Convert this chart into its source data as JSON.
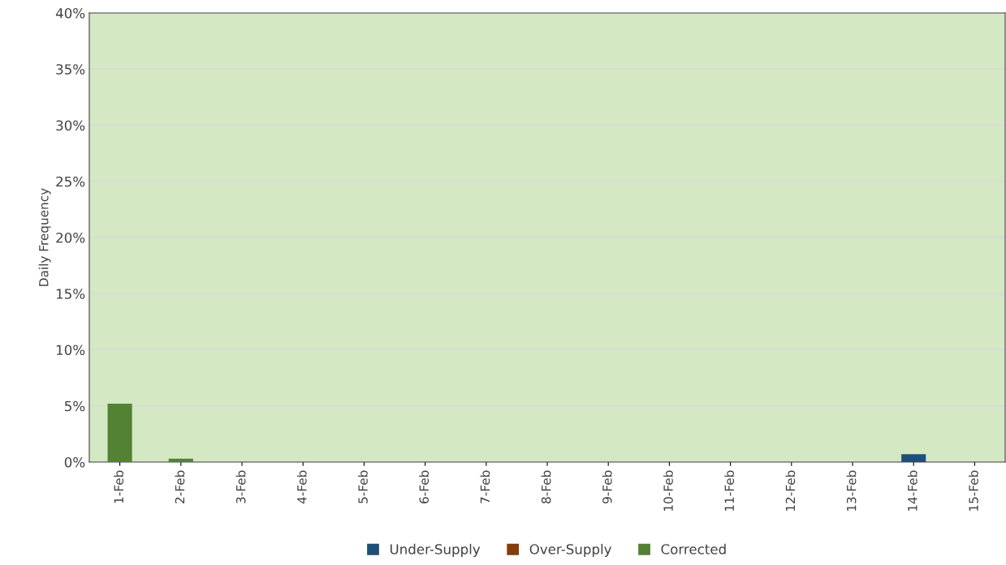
{
  "chart_data": {
    "type": "bar",
    "stacked": true,
    "ylabel": "Daily Frequency",
    "categories": [
      "1-Feb",
      "2-Feb",
      "3-Feb",
      "4-Feb",
      "5-Feb",
      "6-Feb",
      "7-Feb",
      "8-Feb",
      "9-Feb",
      "10-Feb",
      "11-Feb",
      "12-Feb",
      "13-Feb",
      "14-Feb",
      "15-Feb"
    ],
    "series": [
      {
        "name": "Under-Supply",
        "color": "#1f4e79",
        "values": [
          0,
          0,
          0,
          0,
          0,
          0,
          0,
          0,
          0,
          0,
          0,
          0,
          0,
          0.7,
          0
        ]
      },
      {
        "name": "Over-Supply",
        "color": "#843c0c",
        "values": [
          0,
          0,
          0,
          0,
          0,
          0,
          0,
          0,
          0,
          0,
          0,
          0,
          0,
          0,
          0
        ]
      },
      {
        "name": "Corrected",
        "color": "#548235",
        "values": [
          5.2,
          0.3,
          0,
          0,
          0,
          0,
          0,
          0,
          0,
          0,
          0,
          0,
          0,
          0,
          0
        ]
      }
    ],
    "ylim": [
      0,
      40
    ],
    "yticks": [
      {
        "value": 0,
        "label": "0%"
      },
      {
        "value": 5,
        "label": "5%"
      },
      {
        "value": 10,
        "label": "10%"
      },
      {
        "value": 15,
        "label": "15%"
      },
      {
        "value": 20,
        "label": "20%"
      },
      {
        "value": 25,
        "label": "25%"
      },
      {
        "value": 30,
        "label": "30%"
      },
      {
        "value": 35,
        "label": "35%"
      },
      {
        "value": 40,
        "label": "40%"
      }
    ],
    "grid": "y",
    "legend": "bottom"
  }
}
